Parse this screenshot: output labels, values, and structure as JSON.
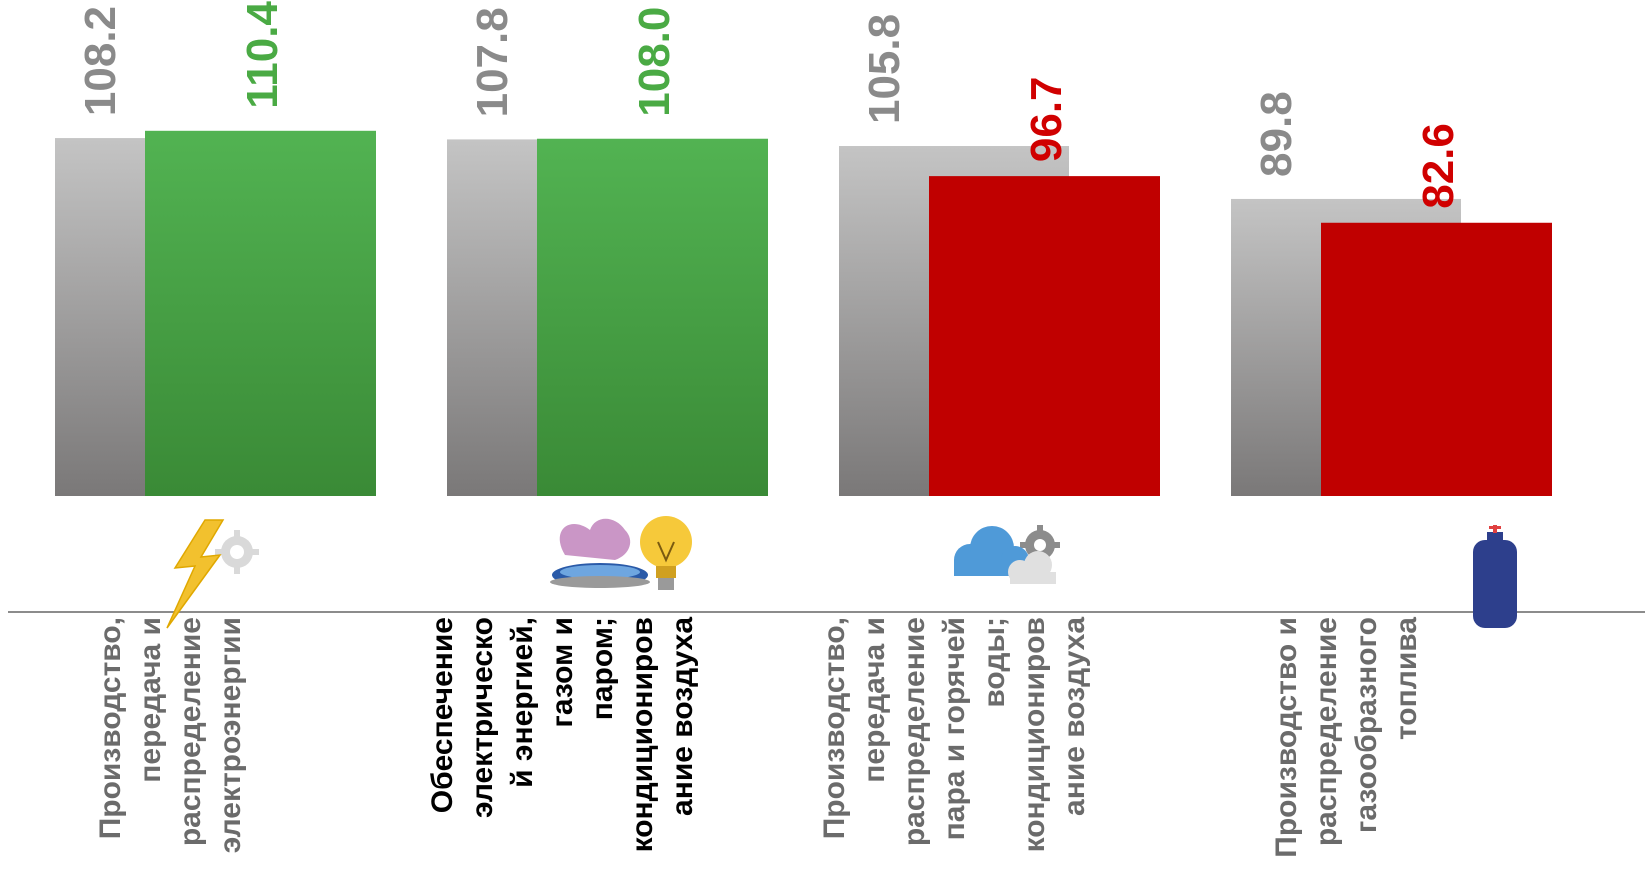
{
  "chart_data": {
    "type": "bar",
    "categories": [
      [
        "Производство,",
        "передача и",
        "распределение",
        "электроэнергии"
      ],
      [
        "Обеспечение",
        "электрическо",
        "й энергией,",
        "газом и",
        "паром;",
        "кондициониров",
        "ание воздуха"
      ],
      [
        "Производство,",
        "передача и",
        "распределение",
        "пара и горячей",
        "воды;",
        "кондициониров",
        "ание воздуха"
      ],
      [
        "Производство и",
        "распределение",
        "газообразного",
        "топлива"
      ]
    ],
    "category_bold": [
      false,
      true,
      false,
      false
    ],
    "category_icons": [
      "lightning-gear-icon",
      "gas-burner-bulb-icon",
      "cloud-gear-icon",
      "gas-cylinder-icon"
    ],
    "series": [
      {
        "values": [
          108.2,
          107.8,
          105.8,
          89.8
        ]
      },
      {
        "values": [
          110.4,
          108.0,
          96.7,
          82.6
        ]
      }
    ],
    "value_labels": [
      [
        "108.2",
        "107.8",
        "105.8",
        "89.8"
      ],
      [
        "110.4",
        "108.0",
        "96.7",
        "82.6"
      ]
    ],
    "ylim": [
      0,
      115
    ],
    "colors": {
      "series1_top": "#c4c4c4",
      "series1_bottom": "#7a7878",
      "series1_label": "#8a8a8a",
      "increase_top": "#52b352",
      "increase_bottom": "#3a8a36",
      "increase_label": "#4aaa44",
      "decrease_fill": "#c00000",
      "decrease_label": "#d00000",
      "axis": "#8c8c8c"
    },
    "grid": false,
    "legend": "none"
  }
}
